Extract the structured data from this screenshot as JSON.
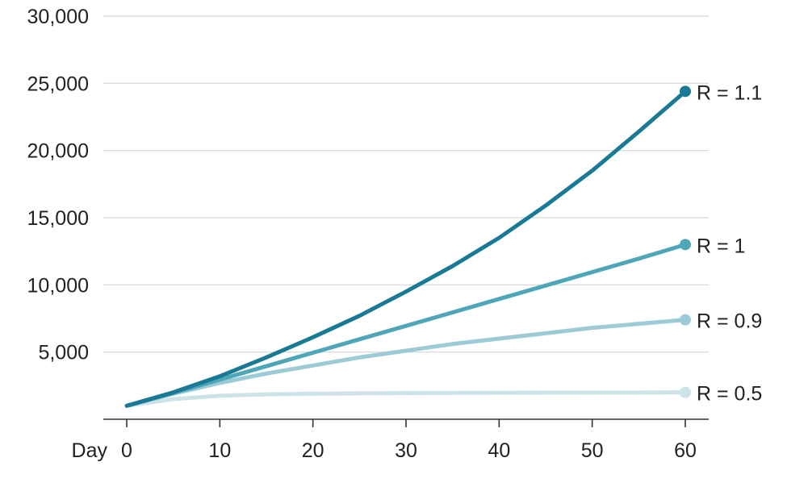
{
  "chart_data": {
    "type": "line",
    "title": "",
    "xlabel": "Day",
    "ylabel": "",
    "x_tick_values": [
      0,
      10,
      20,
      30,
      40,
      50,
      60
    ],
    "y_tick_values": [
      5000,
      10000,
      15000,
      20000,
      25000,
      30000
    ],
    "y_tick_labels": [
      "5,000",
      "10,000",
      "15,000",
      "20,000",
      "25,000",
      "30,000"
    ],
    "xlim": [
      0,
      60
    ],
    "ylim": [
      0,
      30000
    ],
    "grid": true,
    "legend": "direct labels at line ends",
    "x": [
      0,
      5,
      10,
      15,
      20,
      25,
      30,
      35,
      40,
      45,
      50,
      55,
      60
    ],
    "series": [
      {
        "name": "R = 1.1",
        "color": "#1a7a96",
        "values": [
          1000,
          2000,
          3200,
          4600,
          6100,
          7700,
          9500,
          11400,
          13500,
          15900,
          18500,
          21400,
          24400
        ]
      },
      {
        "name": "R = 1",
        "color": "#4ea6b8",
        "values": [
          1000,
          1950,
          2950,
          3950,
          4950,
          5950,
          6950,
          7950,
          8950,
          9950,
          10950,
          11950,
          13000
        ]
      },
      {
        "name": "R = 0.9",
        "color": "#9ccad6",
        "values": [
          1000,
          1900,
          2700,
          3400,
          4000,
          4600,
          5100,
          5600,
          6000,
          6400,
          6800,
          7100,
          7400
        ]
      },
      {
        "name": "R = 0.5",
        "color": "#cde3e8",
        "values": [
          1000,
          1500,
          1750,
          1850,
          1900,
          1930,
          1950,
          1960,
          1970,
          1980,
          1985,
          1990,
          2000
        ]
      }
    ]
  }
}
